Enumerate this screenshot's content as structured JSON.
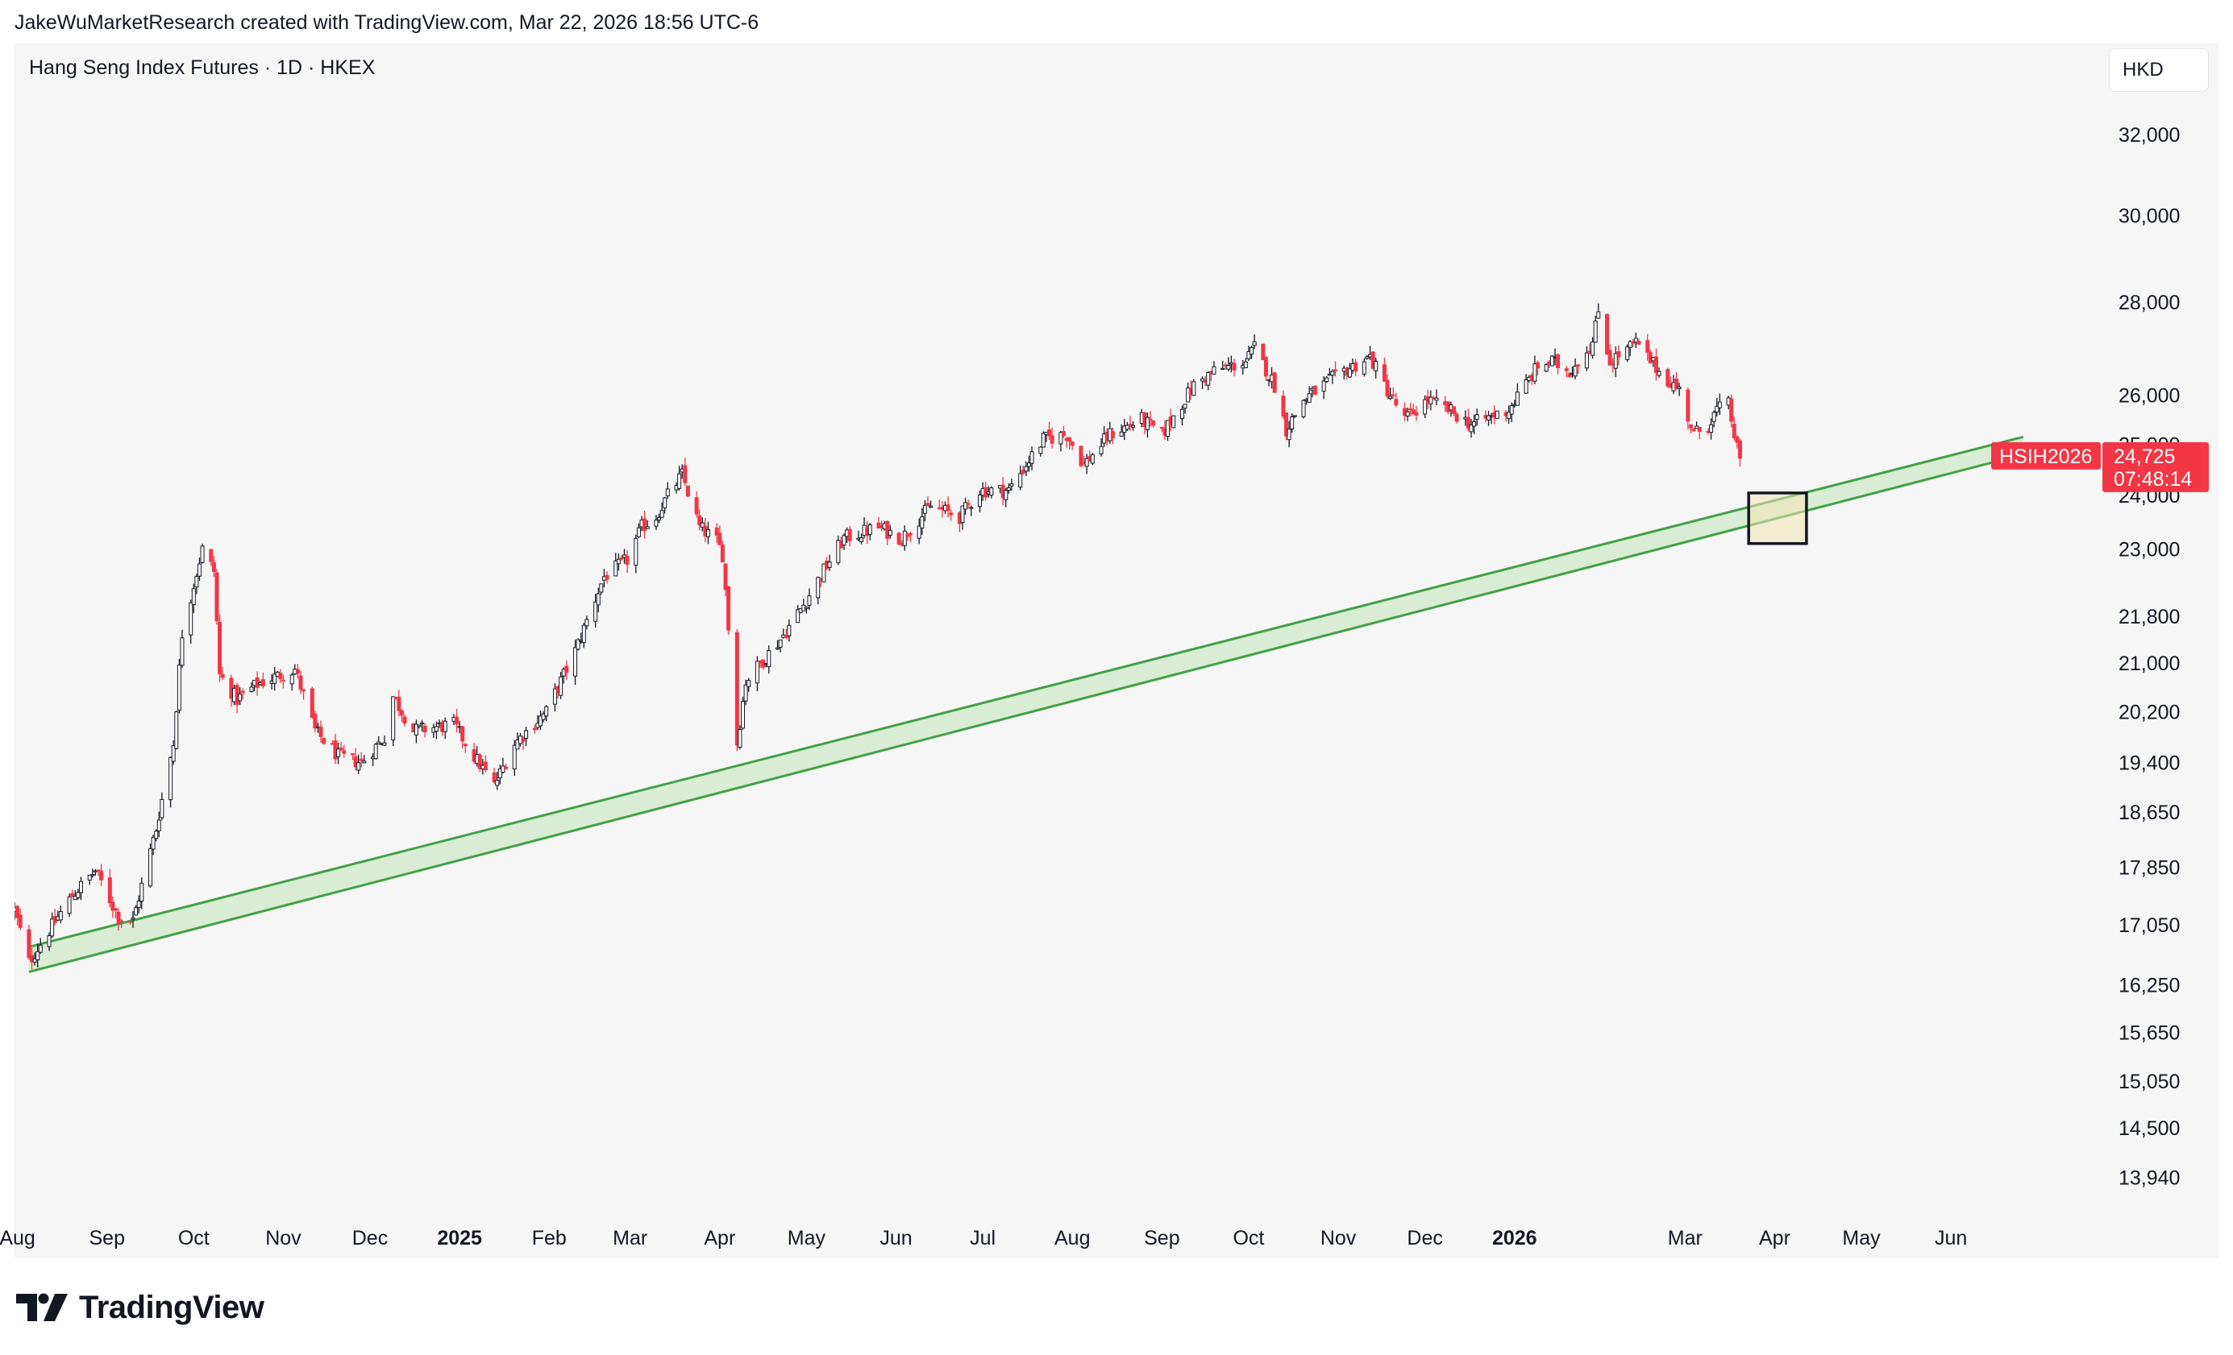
{
  "header": {
    "attribution": "JakeWuMarketResearch created with TradingView.com, Mar 22, 2026 18:56 UTC-6"
  },
  "chart_header": {
    "title": "Hang Seng Index Futures · 1D · HKEX",
    "currency": "HKD"
  },
  "branding": {
    "name": "TradingView"
  },
  "colors": {
    "up": "#131722",
    "down": "#f23645",
    "channel_line": "#43a047",
    "channel_fill": "#d6ecd2",
    "box_fill": "#f0e6b5",
    "price_label_bg": "#f23645"
  },
  "chart_data": {
    "type": "candlestick",
    "title": "Hang Seng Index Futures · 1D · HKEX",
    "symbol": "HSIH2026",
    "last_price": "24,725",
    "countdown": "07:48:14",
    "y_scale": "log",
    "ylim": [
      13600,
      33300
    ],
    "y_ticks": [
      32000,
      30000,
      28000,
      26000,
      25000,
      24000,
      23000,
      21800,
      21000,
      20200,
      19400,
      18650,
      17850,
      17050,
      16250,
      15650,
      15050,
      14500,
      13940
    ],
    "y_tick_labels": [
      "32,000",
      "30,000",
      "28,000",
      "26,000",
      "25,000",
      "24,000",
      "23,000",
      "21,800",
      "21,000",
      "20,200",
      "19,400",
      "18,650",
      "17,850",
      "17,050",
      "16,250",
      "15,650",
      "15,050",
      "14,500",
      "13,940"
    ],
    "x_ticks": [
      {
        "label": "Aug",
        "date": "2024-08-01",
        "bold": false
      },
      {
        "label": "Sep",
        "date": "2024-09-01",
        "bold": false
      },
      {
        "label": "Oct",
        "date": "2024-10-01",
        "bold": false
      },
      {
        "label": "Nov",
        "date": "2024-11-01",
        "bold": false
      },
      {
        "label": "Dec",
        "date": "2024-12-01",
        "bold": false
      },
      {
        "label": "2025",
        "date": "2025-01-01",
        "bold": true
      },
      {
        "label": "Feb",
        "date": "2025-02-01",
        "bold": false
      },
      {
        "label": "Mar",
        "date": "2025-03-01",
        "bold": false
      },
      {
        "label": "Apr",
        "date": "2025-04-01",
        "bold": false
      },
      {
        "label": "May",
        "date": "2025-05-01",
        "bold": false
      },
      {
        "label": "Jun",
        "date": "2025-06-01",
        "bold": false
      },
      {
        "label": "Jul",
        "date": "2025-07-01",
        "bold": false
      },
      {
        "label": "Aug",
        "date": "2025-08-01",
        "bold": false
      },
      {
        "label": "Sep",
        "date": "2025-09-01",
        "bold": false
      },
      {
        "label": "Oct",
        "date": "2025-10-01",
        "bold": false
      },
      {
        "label": "Nov",
        "date": "2025-11-01",
        "bold": false
      },
      {
        "label": "Dec",
        "date": "2025-12-01",
        "bold": false
      },
      {
        "label": "2026",
        "date": "2026-01-01",
        "bold": true
      },
      {
        "label": "Mar",
        "date": "2026-03-01",
        "bold": false
      },
      {
        "label": "Apr",
        "date": "2026-04-01",
        "bold": false
      },
      {
        "label": "May",
        "date": "2026-05-01",
        "bold": false
      },
      {
        "label": "Jun",
        "date": "2026-06-01",
        "bold": false
      }
    ],
    "xlim": [
      "2024-07-31",
      "2026-07-10"
    ],
    "price_path": [
      [
        "2024-07-31",
        17250
      ],
      [
        "2024-08-05",
        16550
      ],
      [
        "2024-08-20",
        17450
      ],
      [
        "2024-08-28",
        17800
      ],
      [
        "2024-09-05",
        17150
      ],
      [
        "2024-09-10",
        17100
      ],
      [
        "2024-09-18",
        18400
      ],
      [
        "2024-09-24",
        19700
      ],
      [
        "2024-09-27",
        21500
      ],
      [
        "2024-10-04",
        23000
      ],
      [
        "2024-10-08",
        22600
      ],
      [
        "2024-10-10",
        20800
      ],
      [
        "2024-10-16",
        20400
      ],
      [
        "2024-10-23",
        20650
      ],
      [
        "2024-11-05",
        20900
      ],
      [
        "2024-11-12",
        19900
      ],
      [
        "2024-11-20",
        19500
      ],
      [
        "2024-11-28",
        19400
      ],
      [
        "2024-12-06",
        19800
      ],
      [
        "2024-12-09",
        20450
      ],
      [
        "2024-12-16",
        19900
      ],
      [
        "2024-12-30",
        20000
      ],
      [
        "2025-01-06",
        19500
      ],
      [
        "2025-01-13",
        19050
      ],
      [
        "2025-01-20",
        19700
      ],
      [
        "2025-01-31",
        20200
      ],
      [
        "2025-02-10",
        21200
      ],
      [
        "2025-02-20",
        22500
      ],
      [
        "2025-02-28",
        22800
      ],
      [
        "2025-03-05",
        23400
      ],
      [
        "2025-03-10",
        23600
      ],
      [
        "2025-03-14",
        24000
      ],
      [
        "2025-03-19",
        24400
      ],
      [
        "2025-03-25",
        23400
      ],
      [
        "2025-03-31",
        23150
      ],
      [
        "2025-04-02",
        22900
      ],
      [
        "2025-04-07",
        19700
      ],
      [
        "2025-04-10",
        20700
      ],
      [
        "2025-04-22",
        21400
      ],
      [
        "2025-04-30",
        22000
      ],
      [
        "2025-05-08",
        22700
      ],
      [
        "2025-05-14",
        23200
      ],
      [
        "2025-05-26",
        23400
      ],
      [
        "2025-06-03",
        23200
      ],
      [
        "2025-06-13",
        23800
      ],
      [
        "2025-06-23",
        23600
      ],
      [
        "2025-06-30",
        24100
      ],
      [
        "2025-07-10",
        24100
      ],
      [
        "2025-07-22",
        25100
      ],
      [
        "2025-07-30",
        25200
      ],
      [
        "2025-08-05",
        24600
      ],
      [
        "2025-08-14",
        25200
      ],
      [
        "2025-08-25",
        25500
      ],
      [
        "2025-09-01",
        25200
      ],
      [
        "2025-09-12",
        26200
      ],
      [
        "2025-09-19",
        26500
      ],
      [
        "2025-09-30",
        26700
      ],
      [
        "2025-10-03",
        27000
      ],
      [
        "2025-10-10",
        26200
      ],
      [
        "2025-10-14",
        25300
      ],
      [
        "2025-10-20",
        25900
      ],
      [
        "2025-10-29",
        26300
      ],
      [
        "2025-11-03",
        26500
      ],
      [
        "2025-11-12",
        26800
      ],
      [
        "2025-11-18",
        26100
      ],
      [
        "2025-11-24",
        25500
      ],
      [
        "2025-12-02",
        25900
      ],
      [
        "2025-12-09",
        25700
      ],
      [
        "2025-12-17",
        25400
      ],
      [
        "2025-12-30",
        25700
      ],
      [
        "2026-01-09",
        26600
      ],
      [
        "2026-01-14",
        26700
      ],
      [
        "2026-01-20",
        26500
      ],
      [
        "2026-01-28",
        27100
      ],
      [
        "2026-01-30",
        27800
      ],
      [
        "2026-02-03",
        26700
      ],
      [
        "2026-02-12",
        27100
      ],
      [
        "2026-02-20",
        26500
      ],
      [
        "2026-02-27",
        26100
      ],
      [
        "2026-03-04",
        25200
      ],
      [
        "2026-03-09",
        25400
      ],
      [
        "2026-03-12",
        25700
      ],
      [
        "2026-03-16",
        25800
      ],
      [
        "2026-03-19",
        24900
      ],
      [
        "2026-03-20",
        24725
      ]
    ],
    "channel": {
      "upper": [
        [
          "2024-08-05",
          16750
        ],
        [
          "2026-06-26",
          25150
        ]
      ],
      "lower": [
        [
          "2024-08-05",
          16420
        ],
        [
          "2026-06-26",
          24800
        ]
      ]
    },
    "target_zone": {
      "x_from": "2026-03-23",
      "x_to": "2026-04-12",
      "y_low": 23100,
      "y_high": 24050
    }
  }
}
